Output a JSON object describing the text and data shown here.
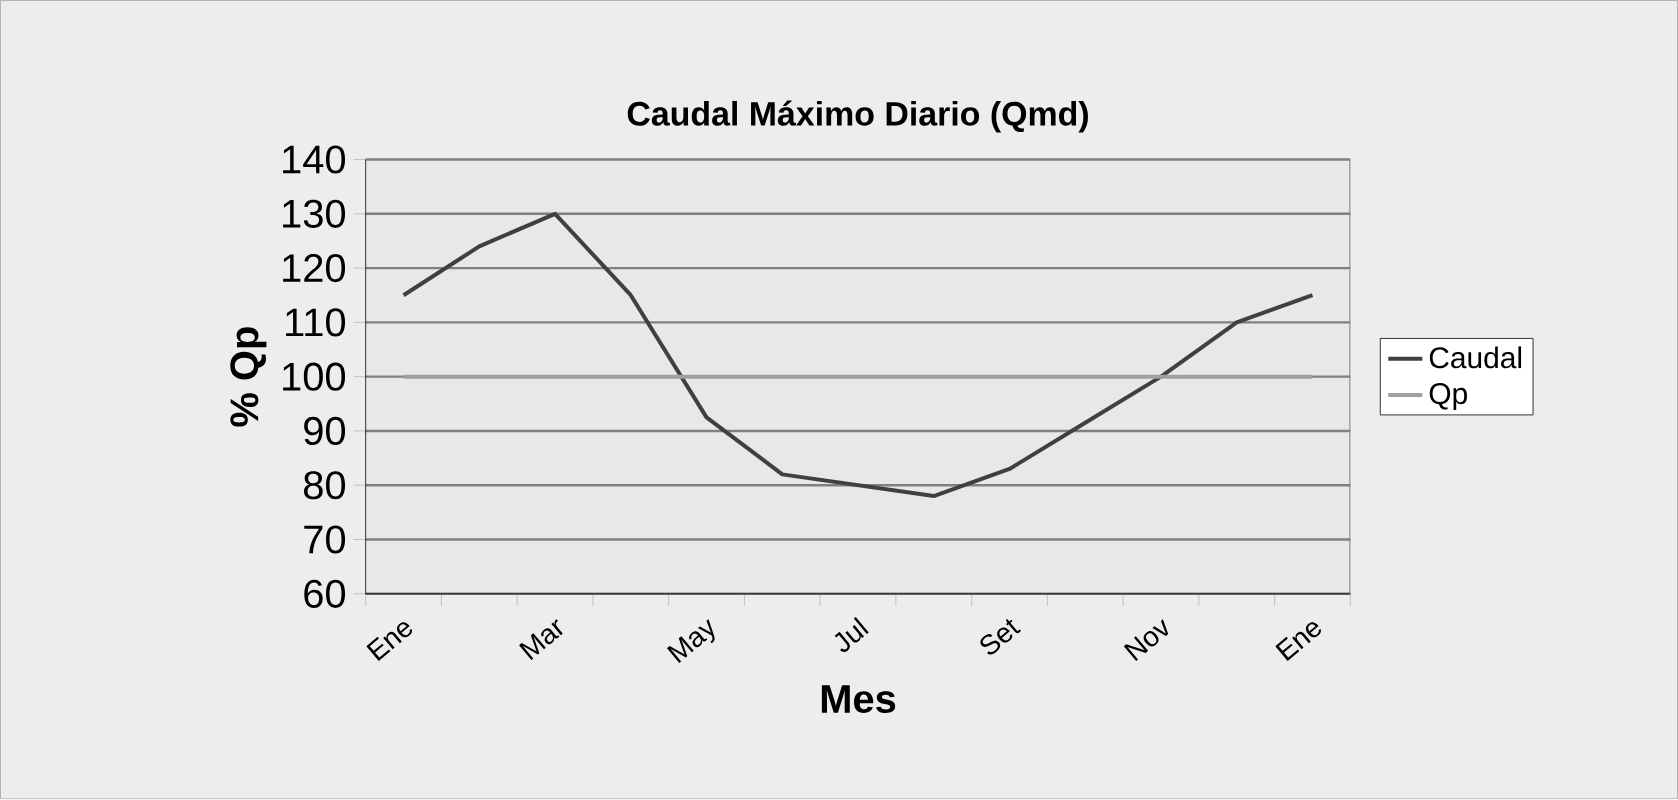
{
  "chart_data": {
    "type": "line",
    "title": "Caudal Máximo Diario (Qmd)",
    "xlabel": "Mes",
    "ylabel": "% Qp",
    "categories": [
      "Ene",
      null,
      "Mar",
      null,
      "May",
      null,
      "Jul",
      null,
      "Set",
      null,
      "Nov",
      null,
      "Ene"
    ],
    "series": [
      {
        "name": "Caudal",
        "color": "#404040",
        "values": [
          115,
          124,
          130,
          115,
          92.5,
          82,
          80,
          78,
          83,
          91.5,
          100,
          110,
          115
        ]
      },
      {
        "name": "Qp",
        "color": "#a0a0a0",
        "values": [
          100,
          100,
          100,
          100,
          100,
          100,
          100,
          100,
          100,
          100,
          100,
          100,
          100
        ]
      }
    ],
    "ylim": [
      60,
      140
    ],
    "yticks": [
      60,
      70,
      80,
      90,
      100,
      110,
      120,
      130,
      140
    ],
    "grid": "y",
    "legend": "right"
  }
}
